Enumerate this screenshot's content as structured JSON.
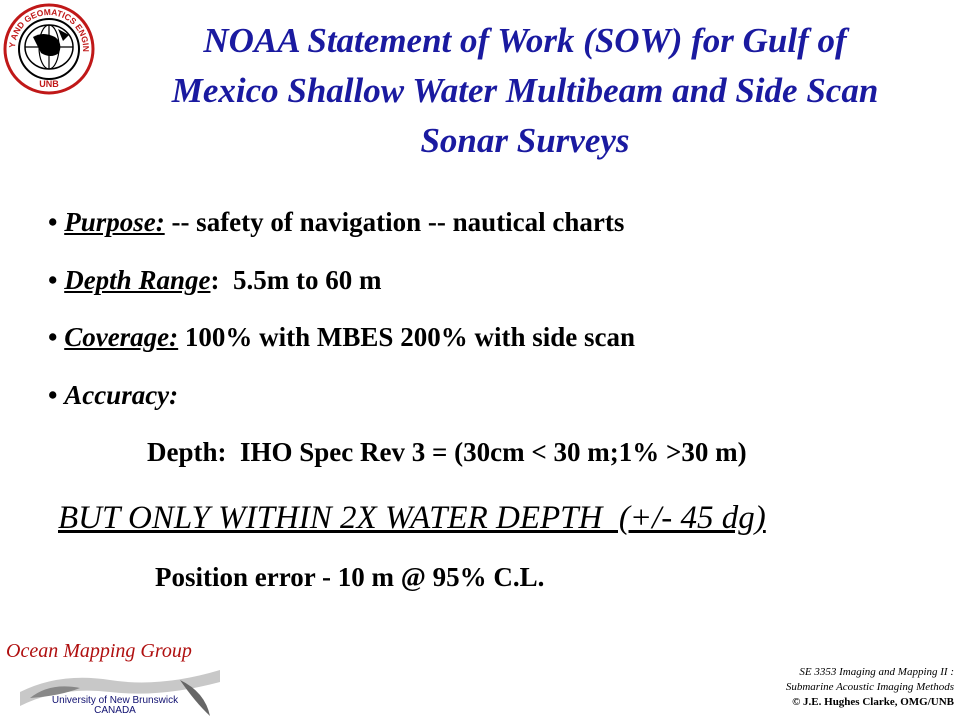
{
  "title": {
    "line1": "NOAA Statement of Work (SOW) for Gulf of",
    "line2": "Mexico Shallow Water Multibeam and Side Scan",
    "line3": "Sonar Surveys"
  },
  "logo": {
    "ring_text": "GEODESY AND GEOMATICS ENGINEERING",
    "bottom_text": "UNB",
    "icon": "globe-icon"
  },
  "bullets": [
    {
      "label": "Purpose:",
      "text": " -- safety of navigation -- nautical charts"
    },
    {
      "label": "Depth Range",
      "suffix": ":",
      "text": "  5.5m to 60 m"
    },
    {
      "label": "Coverage:",
      "text": " 100% with MBES 200% with side scan"
    },
    {
      "label": "Accuracy:",
      "text": ""
    }
  ],
  "bullet_char": "•",
  "depth_line": "Depth:  IHO Spec Rev 3 = (30cm < 30 m;1% >30 m)",
  "emphasis": "BUT ONLY WITHIN 2X WATER DEPTH  (+/- 45 dg)",
  "position_line": "Position error - 10 m @ 95% C.L.",
  "footer": {
    "group": "Ocean Mapping Group",
    "university": "University of New Brunswick",
    "country": "CANADA",
    "course1": "SE 3353 Imaging and Mapping II :",
    "course2": "Submarine Acoustic Imaging Methods",
    "copyright": "© J.E. Hughes Clarke, OMG/UNB"
  },
  "colors": {
    "title": "#1a1aa0",
    "group": "#b01010",
    "university": "#101070"
  }
}
